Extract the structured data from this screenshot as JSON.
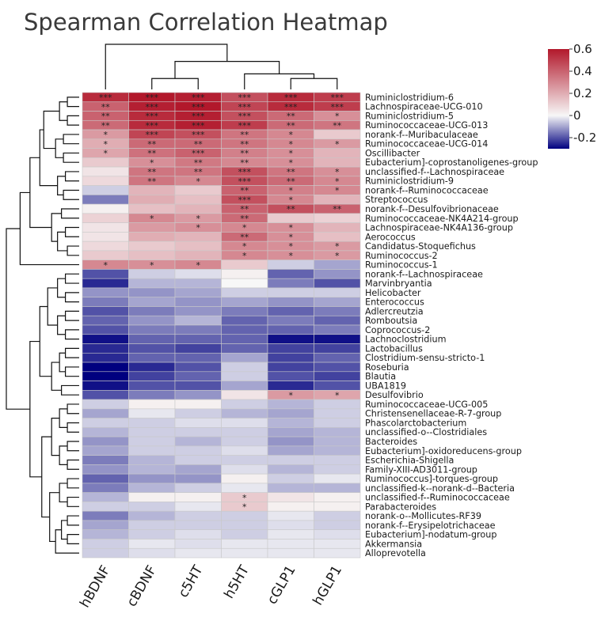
{
  "chart_data": {
    "type": "heatmap",
    "title": "Spearman Correlation Heatmap",
    "columns": [
      "hBDNF",
      "cBDNF",
      "c5HT",
      "h5HT",
      "cGLP1",
      "hGLP1"
    ],
    "rows": [
      "Ruminiclostridium-6",
      "Lachnospiraceae-UCG-010",
      "Ruminiclostridium-5",
      "Ruminococcaceae-UCG-013",
      "norank-f--Muribaculaceae",
      "Ruminococcaceae-UCG-014",
      "Oscillibacter",
      "Eubacterium]-coprostanoligenes-group",
      "unclassified-f--Lachnospiraceae",
      "Ruminiclostridium-9",
      "norank-f--Ruminococcaceae",
      "Streptococcus",
      "norank-f--Desulfovibrionaceae",
      "Ruminococcaceae-NK4A214-group",
      "Lachnospiraceae-NK4A136-group",
      "Aerococcus",
      "Candidatus-Stoquefichus",
      "Ruminococcus-2",
      "Ruminococcus-1",
      "norank-f--Lachnospiraceae",
      "Marvinbryantia",
      "Helicobacter",
      "Enterococcus",
      "Adlercreutzia",
      "Romboutsia",
      "Coprococcus-2",
      "Lachnoclostridium",
      "Lactobacillus",
      "Clostridium-sensu-stricto-1",
      "Roseburia",
      "Blautia",
      "UBA1819",
      "Desulfovibrio",
      "Ruminococcaceae-UCG-005",
      "Christensenellaceae-R-7-group",
      "Phascolarctobacterium",
      "unclassified-o--Clostridiales",
      "Bacteroides",
      "Eubacterium]-oxidoreducens-group",
      "Escherichia-Shigella",
      "Family-XIII-AD3011-group",
      "Ruminococcus]-torques-group",
      "unclassified-k--norank-d--Bacteria",
      "unclassified-f--Ruminococcaceae",
      "Parabacteroides",
      "norank-o--Mollicutes-RF39",
      "norank-f--Erysipelotrichaceae",
      "Eubacterium]-nodatum-group",
      "Akkermansia",
      "Alloprevotella"
    ],
    "values": [
      [
        0.55,
        0.6,
        0.58,
        0.45,
        0.55,
        0.5
      ],
      [
        0.4,
        0.58,
        0.6,
        0.48,
        0.55,
        0.5
      ],
      [
        0.4,
        0.55,
        0.58,
        0.45,
        0.38,
        0.28
      ],
      [
        0.38,
        0.55,
        0.58,
        0.5,
        0.38,
        0.35
      ],
      [
        0.25,
        0.48,
        0.45,
        0.35,
        0.3,
        0.12
      ],
      [
        0.2,
        0.38,
        0.38,
        0.35,
        0.3,
        0.25
      ],
      [
        0.22,
        0.36,
        0.4,
        0.32,
        0.28,
        0.18
      ],
      [
        0.12,
        0.28,
        0.34,
        0.3,
        0.28,
        0.18
      ],
      [
        0.05,
        0.35,
        0.35,
        0.45,
        0.35,
        0.28
      ],
      [
        0.08,
        0.35,
        0.3,
        0.45,
        0.38,
        0.3
      ],
      [
        -0.05,
        0.18,
        0.12,
        0.4,
        0.32,
        0.3
      ],
      [
        -0.15,
        0.2,
        0.15,
        0.45,
        0.3,
        0.18
      ],
      [
        0.02,
        0.15,
        0.18,
        0.4,
        0.45,
        0.4
      ],
      [
        0.1,
        0.3,
        0.25,
        0.38,
        0.12,
        0.1
      ],
      [
        0.05,
        0.25,
        0.28,
        0.3,
        0.28,
        0.18
      ],
      [
        0.05,
        0.2,
        0.18,
        0.38,
        0.28,
        0.15
      ],
      [
        0.08,
        0.12,
        0.15,
        0.3,
        0.28,
        0.25
      ],
      [
        0.12,
        0.15,
        0.18,
        0.3,
        0.28,
        0.25
      ],
      [
        0.3,
        0.28,
        0.3,
        0.12,
        -0.05,
        -0.1
      ],
      [
        -0.2,
        -0.05,
        -0.03,
        0.02,
        -0.18,
        -0.12
      ],
      [
        -0.25,
        -0.08,
        -0.08,
        0.0,
        -0.15,
        -0.2
      ],
      [
        -0.12,
        -0.12,
        -0.1,
        -0.05,
        -0.05,
        -0.05
      ],
      [
        -0.15,
        -0.1,
        -0.12,
        -0.1,
        -0.12,
        -0.1
      ],
      [
        -0.2,
        -0.15,
        -0.12,
        -0.15,
        -0.18,
        -0.15
      ],
      [
        -0.18,
        -0.12,
        -0.08,
        -0.18,
        -0.15,
        -0.18
      ],
      [
        -0.2,
        -0.15,
        -0.15,
        -0.18,
        -0.18,
        -0.15
      ],
      [
        -0.28,
        -0.18,
        -0.18,
        -0.18,
        -0.28,
        -0.28
      ],
      [
        -0.25,
        -0.2,
        -0.22,
        -0.18,
        -0.22,
        -0.22
      ],
      [
        -0.25,
        -0.18,
        -0.18,
        -0.1,
        -0.22,
        -0.18
      ],
      [
        -0.3,
        -0.25,
        -0.2,
        -0.05,
        -0.22,
        -0.2
      ],
      [
        -0.32,
        -0.22,
        -0.18,
        -0.05,
        -0.2,
        -0.22
      ],
      [
        -0.28,
        -0.2,
        -0.2,
        -0.1,
        -0.25,
        -0.2
      ],
      [
        -0.2,
        -0.15,
        -0.12,
        0.05,
        0.25,
        0.22
      ],
      [
        -0.05,
        0.02,
        0.02,
        -0.05,
        -0.08,
        -0.05
      ],
      [
        -0.1,
        -0.02,
        -0.05,
        -0.08,
        -0.1,
        -0.05
      ],
      [
        -0.05,
        -0.05,
        -0.03,
        -0.03,
        -0.08,
        -0.05
      ],
      [
        -0.08,
        -0.05,
        -0.05,
        -0.05,
        -0.1,
        -0.08
      ],
      [
        -0.12,
        -0.05,
        -0.08,
        -0.05,
        -0.12,
        -0.08
      ],
      [
        -0.1,
        -0.05,
        -0.05,
        -0.03,
        -0.1,
        -0.08
      ],
      [
        -0.15,
        -0.08,
        -0.05,
        -0.05,
        -0.05,
        -0.05
      ],
      [
        -0.12,
        -0.08,
        -0.1,
        -0.03,
        -0.08,
        -0.05
      ],
      [
        -0.18,
        -0.12,
        -0.12,
        0.02,
        -0.05,
        -0.02
      ],
      [
        -0.15,
        -0.08,
        -0.05,
        -0.02,
        -0.08,
        -0.08
      ],
      [
        -0.08,
        0.02,
        0.02,
        0.12,
        0.05,
        0.02
      ],
      [
        -0.05,
        -0.05,
        -0.02,
        0.12,
        0.02,
        0.02
      ],
      [
        -0.15,
        -0.08,
        -0.05,
        -0.05,
        -0.02,
        -0.05
      ],
      [
        -0.1,
        -0.05,
        -0.05,
        -0.05,
        -0.03,
        -0.05
      ],
      [
        -0.08,
        -0.05,
        -0.03,
        -0.05,
        -0.02,
        -0.03
      ],
      [
        -0.05,
        -0.02,
        -0.03,
        -0.02,
        -0.02,
        -0.02
      ],
      [
        -0.05,
        -0.03,
        -0.02,
        -0.02,
        -0.02,
        -0.02
      ]
    ],
    "significance": [
      [
        "***",
        "***",
        "***",
        "***",
        "***",
        "***"
      ],
      [
        "**",
        "***",
        "***",
        "***",
        "***",
        "***"
      ],
      [
        "**",
        "***",
        "***",
        "***",
        "**",
        "*"
      ],
      [
        "**",
        "***",
        "***",
        "***",
        "**",
        "**"
      ],
      [
        "*",
        "***",
        "***",
        "**",
        "*",
        ""
      ],
      [
        "*",
        "**",
        "**",
        "**",
        "*",
        "*"
      ],
      [
        "*",
        "**",
        "***",
        "**",
        "*",
        ""
      ],
      [
        "",
        "*",
        "**",
        "**",
        "*",
        ""
      ],
      [
        "",
        "**",
        "**",
        "***",
        "**",
        "*"
      ],
      [
        "",
        "**",
        "*",
        "***",
        "**",
        "*"
      ],
      [
        "",
        "",
        "",
        "**",
        "*",
        "*"
      ],
      [
        "",
        "",
        "",
        "***",
        "*",
        ""
      ],
      [
        "",
        "",
        "",
        "**",
        "**",
        "**"
      ],
      [
        "",
        "*",
        "*",
        "**",
        "",
        ""
      ],
      [
        "",
        "",
        "*",
        "*",
        "*",
        ""
      ],
      [
        "",
        "",
        "",
        "**",
        "*",
        ""
      ],
      [
        "",
        "",
        "",
        "*",
        "*",
        "*"
      ],
      [
        "",
        "",
        "",
        "*",
        "*",
        "*"
      ],
      [
        "*",
        "*",
        "*",
        "",
        "",
        ""
      ],
      [
        "",
        "",
        "",
        "",
        "",
        ""
      ],
      [
        "",
        "",
        "",
        "",
        "",
        ""
      ],
      [
        "",
        "",
        "",
        "",
        "",
        ""
      ],
      [
        "",
        "",
        "",
        "",
        "",
        ""
      ],
      [
        "",
        "",
        "",
        "",
        "",
        ""
      ],
      [
        "",
        "",
        "",
        "",
        "",
        ""
      ],
      [
        "",
        "",
        "",
        "",
        "",
        ""
      ],
      [
        "",
        "",
        "",
        "",
        "",
        ""
      ],
      [
        "",
        "",
        "",
        "",
        "",
        ""
      ],
      [
        "",
        "",
        "",
        "",
        "",
        ""
      ],
      [
        "",
        "",
        "",
        "",
        "",
        ""
      ],
      [
        "",
        "",
        "",
        "",
        "",
        ""
      ],
      [
        "",
        "",
        "",
        "",
        "",
        ""
      ],
      [
        "",
        "",
        "",
        "",
        "*",
        "*"
      ],
      [
        "",
        "",
        "",
        "",
        "",
        ""
      ],
      [
        "",
        "",
        "",
        "",
        "",
        ""
      ],
      [
        "",
        "",
        "",
        "",
        "",
        ""
      ],
      [
        "",
        "",
        "",
        "",
        "",
        ""
      ],
      [
        "",
        "",
        "",
        "",
        "",
        ""
      ],
      [
        "",
        "",
        "",
        "",
        "",
        ""
      ],
      [
        "",
        "",
        "",
        "",
        "",
        ""
      ],
      [
        "",
        "",
        "",
        "",
        "",
        ""
      ],
      [
        "",
        "",
        "",
        "",
        "",
        ""
      ],
      [
        "",
        "",
        "",
        "",
        "",
        ""
      ],
      [
        "",
        "",
        "",
        "*",
        "",
        ""
      ],
      [
        "",
        "",
        "",
        "*",
        "",
        ""
      ],
      [
        "",
        "",
        "",
        "",
        "",
        ""
      ],
      [
        "",
        "",
        "",
        "",
        "",
        ""
      ],
      [
        "",
        "",
        "",
        "",
        "",
        ""
      ],
      [
        "",
        "",
        "",
        "",
        "",
        ""
      ],
      [
        "",
        "",
        "",
        "",
        "",
        ""
      ]
    ],
    "colorbar": {
      "min": -0.3,
      "max": 0.6,
      "ticks": [
        0.6,
        0.4,
        0.2,
        0,
        -0.2
      ],
      "tick_labels": [
        "0.6",
        "0.4",
        "0.2",
        "0",
        "-0.2"
      ],
      "colors": [
        "#00007f",
        "#f7f7f7",
        "#b2182b"
      ]
    },
    "row_dendrogram": {
      "leaf_order": "rows",
      "merges": [
        [
          0,
          1,
          0.3
        ],
        [
          2,
          3,
          0.3
        ],
        [
          50,
          51,
          0.5
        ],
        [
          4,
          5,
          0.4
        ],
        [
          6,
          7,
          0.4
        ],
        [
          53,
          54,
          0.6
        ],
        [
          52,
          55,
          0.9
        ],
        [
          8,
          9,
          0.35
        ],
        [
          10,
          11,
          0.4
        ],
        [
          57,
          58,
          0.55
        ],
        [
          56,
          59,
          1.0
        ],
        [
          12,
          13,
          0.45
        ],
        [
          14,
          15,
          0.35
        ],
        [
          16,
          17,
          0.3
        ],
        [
          62,
          63,
          0.55
        ],
        [
          61,
          64,
          0.7
        ],
        [
          60,
          65,
          1.25
        ],
        [
          66,
          18,
          1.5
        ],
        [
          19,
          20,
          0.35
        ],
        [
          21,
          22,
          0.35
        ],
        [
          68,
          69,
          0.55
        ],
        [
          23,
          24,
          0.35
        ],
        [
          25,
          26,
          0.35
        ],
        [
          71,
          72,
          0.55
        ],
        [
          70,
          73,
          0.8
        ],
        [
          27,
          28,
          0.35
        ],
        [
          29,
          30,
          0.35
        ],
        [
          75,
          76,
          0.5
        ],
        [
          31,
          32,
          0.45
        ],
        [
          77,
          78,
          0.7
        ],
        [
          74,
          79,
          1.0
        ],
        [
          33,
          34,
          0.3
        ],
        [
          35,
          36,
          0.3
        ],
        [
          81,
          82,
          0.5
        ],
        [
          37,
          38,
          0.3
        ],
        [
          39,
          40,
          0.3
        ],
        [
          84,
          85,
          0.5
        ],
        [
          83,
          86,
          0.7
        ],
        [
          41,
          42,
          0.3
        ],
        [
          43,
          44,
          0.3
        ],
        [
          88,
          89,
          0.5
        ],
        [
          45,
          46,
          0.3
        ],
        [
          47,
          48,
          0.3
        ],
        [
          91,
          92,
          0.45
        ],
        [
          93,
          49,
          0.6
        ],
        [
          90,
          94,
          0.75
        ],
        [
          87,
          95,
          0.95
        ],
        [
          80,
          96,
          1.25
        ],
        [
          67,
          97,
          1.85
        ]
      ]
    },
    "col_dendrogram": {
      "leaf_order": "columns",
      "merges": [
        [
          1,
          2,
          0.35
        ],
        [
          4,
          5,
          0.35
        ],
        [
          3,
          7,
          0.5
        ],
        [
          6,
          8,
          0.9
        ],
        [
          0,
          9,
          1.45
        ]
      ]
    }
  }
}
